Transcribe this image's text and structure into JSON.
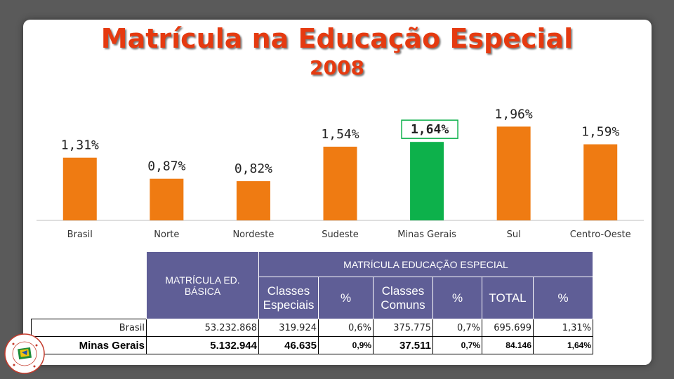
{
  "title": "Matrícula na Educação Especial",
  "subtitle": "2008",
  "colors": {
    "bar": "#ef7b12",
    "highlight": "#0db14b",
    "title": "#e53a10",
    "header": "#5f5e96"
  },
  "chart_data": {
    "type": "bar",
    "categories": [
      "Brasil",
      "Norte",
      "Nordeste",
      "Sudeste",
      "Minas Gerais",
      "Sul",
      "Centro-Oeste"
    ],
    "values": [
      1.31,
      0.87,
      0.82,
      1.54,
      1.64,
      1.96,
      1.59
    ],
    "data_labels": [
      "1,31%",
      "0,87%",
      "0,82%",
      "1,54%",
      "1,64%",
      "1,96%",
      "1,59%"
    ],
    "highlight_index": 4,
    "ylim": [
      0,
      2.2
    ],
    "grid": false,
    "legend": "none"
  },
  "table": {
    "header_left": "MATRÍCULA ED. BÁSICA",
    "header_group": "MATRÍCULA EDUCAÇÃO ESPECIAL",
    "subheaders": [
      "Classes Especiais",
      "%",
      "Classes Comuns",
      "%",
      "TOTAL",
      "%"
    ],
    "rows": [
      {
        "label": "Brasil",
        "cells": [
          "53.232.868",
          "319.924",
          "0,6%",
          "375.775",
          "0,7%",
          "695.699",
          "1,31%"
        ]
      },
      {
        "label": "Minas Gerais",
        "cells": [
          "5.132.944",
          "46.635",
          "0,9%",
          "37.511",
          "0,7%",
          "84.146",
          "1,64%"
        ]
      }
    ]
  },
  "logo": {
    "text": "Plano Decenal de Educação de Minas Gerais"
  }
}
